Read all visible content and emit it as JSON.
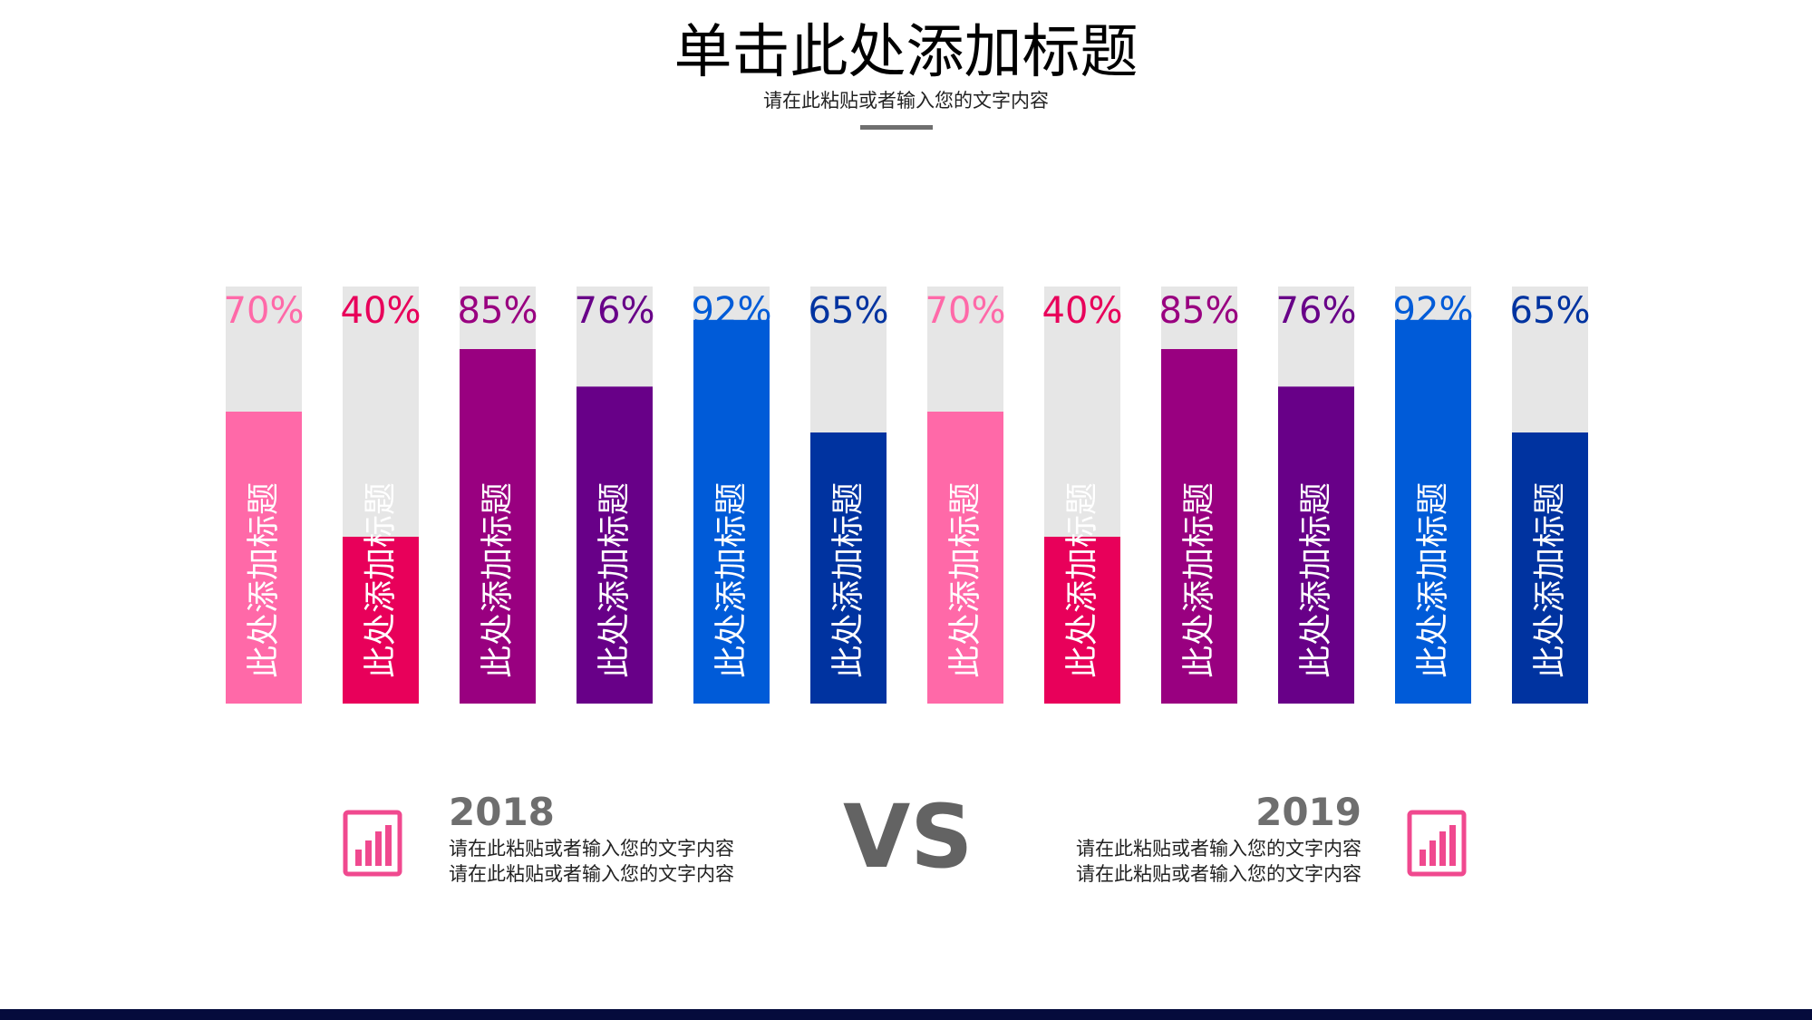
{
  "header": {
    "title": "单击此处添加标题",
    "subtitle": "请在此粘贴或者输入您的文字内容"
  },
  "chart_data": {
    "type": "bar",
    "categories": [
      "此处添加标题",
      "此处添加标题",
      "此处添加标题",
      "此处添加标题",
      "此处添加标题",
      "此处添加标题",
      "此处添加标题",
      "此处添加标题",
      "此处添加标题",
      "此处添加标题",
      "此处添加标题",
      "此处添加标题"
    ],
    "values": [
      70,
      40,
      85,
      76,
      92,
      65,
      70,
      40,
      85,
      76,
      92,
      65
    ],
    "value_labels": [
      "70%",
      "40%",
      "85%",
      "76%",
      "92%",
      "65%",
      "70%",
      "40%",
      "85%",
      "76%",
      "92%",
      "65%"
    ],
    "colors": [
      "#ff69a8",
      "#e8005a",
      "#990080",
      "#680088",
      "#005bd8",
      "#0033a0",
      "#ff69a8",
      "#e8005a",
      "#990080",
      "#680088",
      "#005bd8",
      "#0033a0"
    ],
    "track_color": "#e6e6e6",
    "ylim": [
      0,
      100
    ],
    "title": "",
    "xlabel": "",
    "ylabel": ""
  },
  "comparison": {
    "left": {
      "year": "2018",
      "text": "请在此粘贴或者输入您的文字内容请在此粘贴或者输入您的文字内容",
      "icon": "bar-chart-icon"
    },
    "vs_label": "VS",
    "right": {
      "year": "2019",
      "text": "请在此粘贴或者输入您的文字内容请在此粘贴或者输入您的文字内容",
      "icon": "bar-chart-icon"
    }
  },
  "colors": {
    "accent_pink": "#f0498f",
    "footer_bar": "#050b3c",
    "year_gray": "#6e6e6e"
  }
}
